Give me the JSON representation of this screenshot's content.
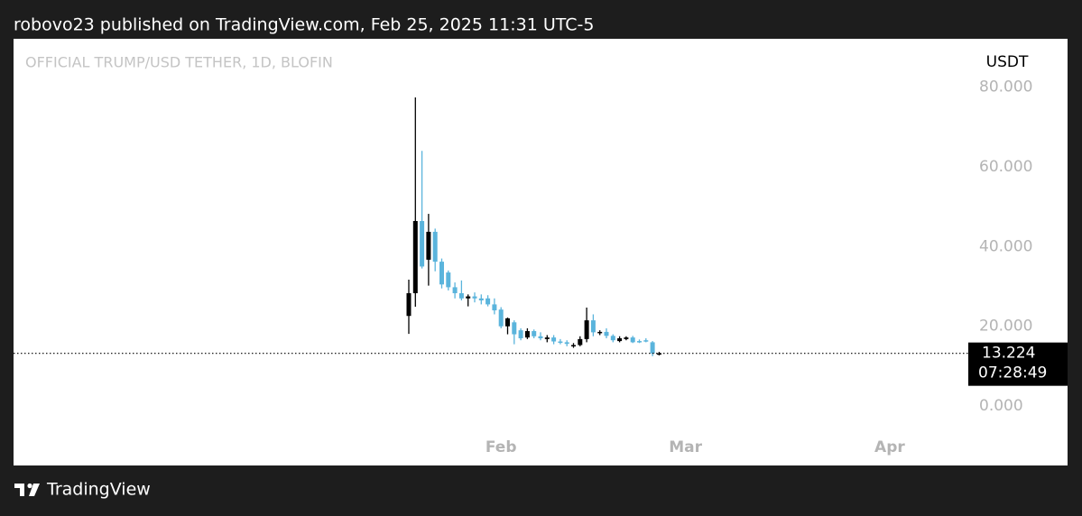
{
  "header": {
    "publisher": "robovo23 published on TradingView.com, Feb 25, 2025 11:31 UTC-5"
  },
  "footer": {
    "brand": "TradingView"
  },
  "chart_data": {
    "type": "candlestick",
    "title": "OFFICIAL TRUMP/USD TETHER, 1D, BLOFIN",
    "y_axis_label": "USDT",
    "up_color": "#000000",
    "down_color": "#5ab4dc",
    "categories": [
      null,
      null,
      null,
      null,
      null,
      null,
      null,
      null,
      null,
      null,
      null,
      null,
      null,
      null,
      "Feb",
      null,
      null,
      null,
      null,
      null,
      null,
      null,
      null,
      null,
      null,
      null,
      null,
      null,
      null,
      null,
      null,
      null,
      null,
      null,
      null,
      null,
      null,
      null,
      null,
      null,
      null,
      null,
      "Mar",
      null,
      null,
      null,
      null,
      null,
      null,
      null,
      null,
      null,
      null,
      null,
      null,
      null,
      null,
      null,
      null,
      null,
      null,
      null,
      null,
      null,
      null,
      null,
      null,
      null,
      null,
      null,
      null,
      null,
      null,
      "Apr"
    ],
    "open": [
      22.6,
      28.3,
      46.4,
      36.7,
      43.7,
      36.2,
      33.5,
      29.8,
      28.3,
      27.0,
      27.5,
      27.0,
      27.0,
      25.5,
      24.2,
      20.0,
      21.0,
      19.0,
      17.2,
      18.8,
      17.5,
      16.8,
      17.2,
      16.2,
      16.0,
      15.0,
      15.3,
      16.8,
      21.5,
      18.3,
      18.6,
      17.6,
      16.3,
      16.8,
      17.2,
      16.3,
      16.5,
      16.0,
      13.0,
      null,
      null,
      null,
      null,
      null,
      null,
      null,
      null,
      null,
      null,
      null,
      null,
      null,
      null,
      null,
      null,
      null,
      null,
      null,
      null,
      null,
      null,
      null,
      null,
      null,
      null,
      null,
      null,
      null,
      null,
      null,
      null,
      null,
      null,
      null
    ],
    "high": [
      31.7,
      77.4,
      64.0,
      48.2,
      44.5,
      37.0,
      34.0,
      31.0,
      31.5,
      28.0,
      28.5,
      28.0,
      27.8,
      27.0,
      24.8,
      22.2,
      21.5,
      19.5,
      19.5,
      19.2,
      18.5,
      17.8,
      17.8,
      16.8,
      16.5,
      15.8,
      17.5,
      24.7,
      23.0,
      19.0,
      19.5,
      18.0,
      17.5,
      17.5,
      17.6,
      16.7,
      17.0,
      16.3,
      13.6,
      null,
      null,
      null,
      null,
      null,
      null,
      null,
      null,
      null,
      null,
      null,
      null,
      null,
      null,
      null,
      null,
      null,
      null,
      null,
      null,
      null,
      null,
      null,
      null,
      null,
      null,
      null,
      null,
      null,
      null,
      null,
      null,
      null,
      null,
      null
    ],
    "low": [
      18.1,
      24.9,
      34.5,
      30.2,
      33.8,
      29.5,
      29.0,
      27.0,
      26.5,
      25.0,
      26.0,
      25.5,
      25.0,
      23.0,
      19.5,
      18.0,
      15.5,
      16.5,
      16.8,
      17.0,
      16.5,
      16.0,
      15.5,
      15.5,
      15.0,
      14.6,
      15.0,
      16.0,
      17.5,
      17.8,
      17.0,
      16.0,
      16.0,
      16.5,
      15.8,
      15.8,
      16.0,
      12.5,
      12.7,
      null,
      null,
      null,
      null,
      null,
      null,
      null,
      null,
      null,
      null,
      null,
      null,
      null,
      null,
      null,
      null,
      null,
      null,
      null,
      null,
      null,
      null,
      null,
      null,
      null,
      null,
      null,
      null,
      null,
      null,
      null,
      null,
      null,
      null,
      null
    ],
    "close": [
      28.3,
      46.4,
      35.0,
      43.7,
      36.2,
      30.5,
      29.8,
      28.3,
      27.0,
      27.5,
      27.0,
      26.5,
      25.5,
      24.0,
      20.0,
      22.0,
      18.0,
      17.0,
      18.8,
      17.5,
      17.0,
      17.2,
      16.2,
      16.0,
      15.6,
      15.3,
      16.8,
      21.5,
      18.5,
      18.6,
      17.6,
      16.5,
      17.0,
      17.2,
      16.0,
      16.1,
      16.2,
      13.2,
      13.224,
      null,
      null,
      null,
      null,
      null,
      null,
      null,
      null,
      null,
      null,
      null,
      null,
      null,
      null,
      null,
      null,
      null,
      null,
      null,
      null,
      null,
      null,
      null,
      null,
      null,
      null,
      null,
      null,
      null,
      null,
      null,
      null,
      null,
      null,
      null
    ],
    "last_price": 13.224,
    "countdown": "07:28:49",
    "ylim": [
      -14.9,
      92.1
    ],
    "yticks": [
      {
        "value": 0,
        "label": "0.000"
      },
      {
        "value": 20,
        "label": "20.000"
      },
      {
        "value": 40,
        "label": "40.000"
      },
      {
        "value": 60,
        "label": "60.000"
      },
      {
        "value": 80,
        "label": "80.000"
      }
    ],
    "grid": false
  }
}
